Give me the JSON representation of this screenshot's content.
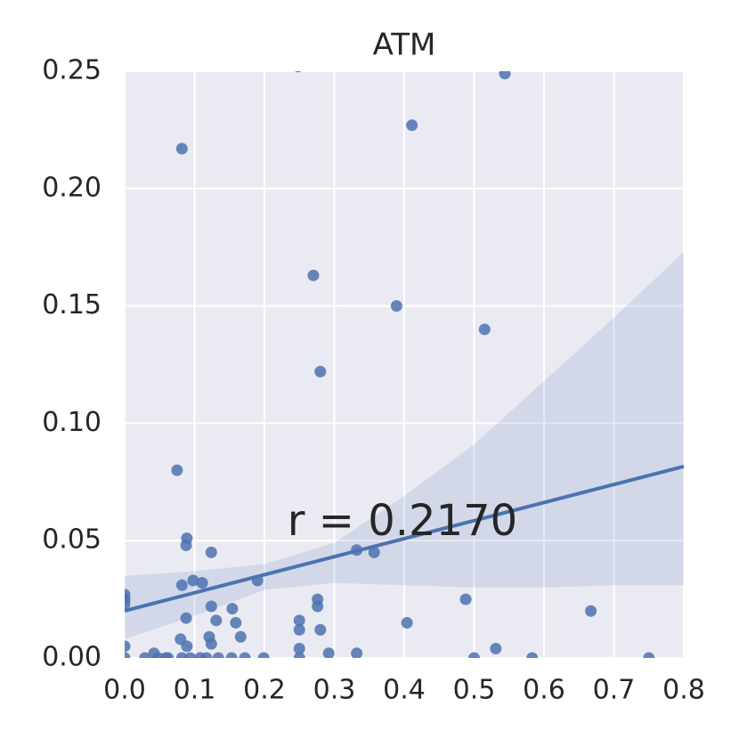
{
  "chart_data": {
    "type": "scatter",
    "title": "ATM",
    "annotation": "r = 0.2170",
    "color": "#4c72b0",
    "background": "#eaeaf2",
    "grid": true,
    "x": [
      0.248,
      0.544,
      0.411,
      0.082,
      0.27,
      0.389,
      0.515,
      0.28,
      0.075,
      0.089,
      0.088,
      0.124,
      0.332,
      0.357,
      0.098,
      0.111,
      0.082,
      0.19,
      0,
      0,
      0,
      0.276,
      0.276,
      0.124,
      0.154,
      0.488,
      0.667,
      0.088,
      0.25,
      0.131,
      0.159,
      0.404,
      0.25,
      0.28,
      0.166,
      0.121,
      0.124,
      0.08,
      0,
      0.089,
      0.25,
      0.531,
      0.042,
      0.292,
      0.332,
      0,
      0.029,
      0.048,
      0.059,
      0.062,
      0.082,
      0.094,
      0.108,
      0.117,
      0.134,
      0.153,
      0.172,
      0.199,
      0.25,
      0.5,
      0.583,
      0.75
    ],
    "y": [
      0.252,
      0.249,
      0.227,
      0.217,
      0.163,
      0.15,
      0.14,
      0.122,
      0.08,
      0.051,
      0.048,
      0.045,
      0.046,
      0.045,
      0.033,
      0.032,
      0.031,
      0.033,
      0.027,
      0.025,
      0.023,
      0.025,
      0.022,
      0.022,
      0.021,
      0.025,
      0.02,
      0.017,
      0.016,
      0.016,
      0.015,
      0.015,
      0.012,
      0.012,
      0.009,
      0.009,
      0.006,
      0.008,
      0.005,
      0.005,
      0.004,
      0.004,
      0.002,
      0.002,
      0.002,
      0,
      0,
      0,
      0,
      0,
      0,
      0,
      0,
      0,
      0,
      0,
      0,
      0,
      0,
      0,
      0,
      0
    ],
    "fit": {
      "x": [
        0,
        0.8
      ],
      "y": [
        0.0201,
        0.0816
      ]
    },
    "ci_x": [
      0,
      0.1,
      0.2,
      0.3,
      0.4,
      0.5,
      0.6,
      0.7,
      0.8
    ],
    "ci_upper": [
      0.035,
      0.037,
      0.04,
      0.049,
      0.069,
      0.091,
      0.118,
      0.145,
      0.173
    ],
    "ci_lower": [
      0.008,
      0.018,
      0.029,
      0.032,
      0.031,
      0.03,
      0.03,
      0.031,
      0.031
    ],
    "xlim": [
      0,
      0.8
    ],
    "ylim": [
      0,
      0.25
    ],
    "xticks": [
      {
        "value": 0,
        "label": "0.0"
      },
      0.1,
      0.2,
      0.3,
      0.4,
      0.5,
      0.6,
      0.7,
      0.8
    ],
    "yticks": [
      {
        "value": 0,
        "label": "0.00"
      },
      {
        "value": 0.05,
        "label": "0.05"
      },
      {
        "value": 0.1,
        "label": "0.10"
      },
      {
        "value": 0.15,
        "label": "0.15"
      },
      {
        "value": 0.2,
        "label": "0.20"
      },
      {
        "value": 0.25,
        "label": "0.25"
      }
    ]
  }
}
